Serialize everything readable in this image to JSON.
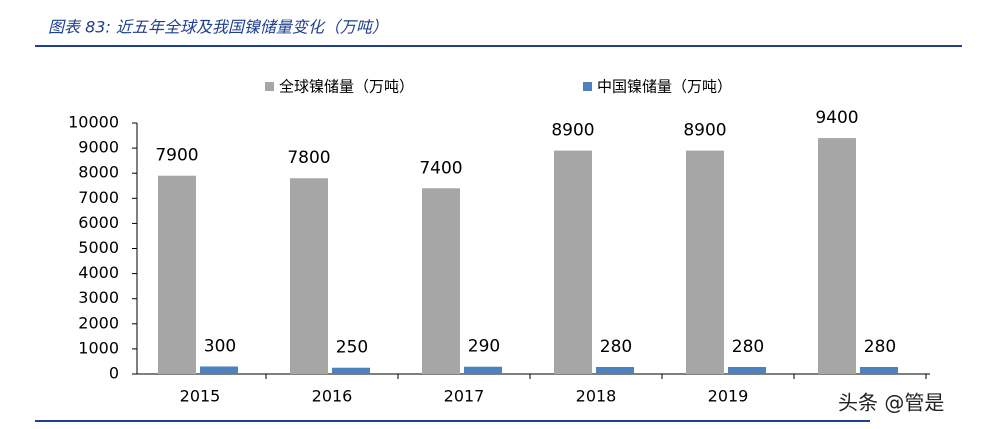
{
  "chart_data": {
    "type": "bar",
    "title": "图表 83:  近五年全球及我国镍储量变化（万吨）",
    "categories": [
      "2015",
      "2016",
      "2017",
      "2018",
      "2019",
      null
    ],
    "series": [
      {
        "name": "全球镍储量（万吨）",
        "color": "#a6a6a6",
        "values": [
          7900,
          7800,
          7400,
          8900,
          8900,
          9400
        ]
      },
      {
        "name": "中国镍储量（万吨）",
        "color": "#4f81bd",
        "values": [
          300,
          250,
          290,
          280,
          280,
          280
        ]
      }
    ],
    "ylim": [
      0,
      10000
    ],
    "yticks": [
      0,
      1000,
      2000,
      3000,
      4000,
      5000,
      6000,
      7000,
      8000,
      9000,
      10000
    ],
    "grid": false,
    "legend": "top",
    "watermark": "头条 @管是"
  }
}
